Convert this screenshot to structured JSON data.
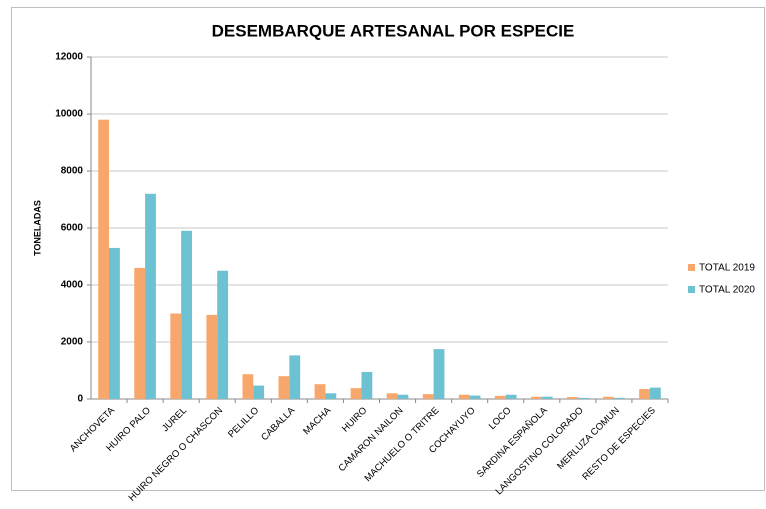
{
  "chart_data": {
    "type": "bar",
    "title": "DESEMBARQUE ARTESANAL POR ESPECIE",
    "ylabel": "TONELADAS",
    "categories": [
      "ANCHOVETA",
      "HUIRO PALO",
      "JUREL",
      "HUIRO NEGRO O CHASCON",
      "PELILLO",
      "CABALLA",
      "MACHA",
      "HUIRO",
      "CAMARON NAILON",
      "MACHUELO O TRITRE",
      "COCHAYUYO",
      "LOCO",
      "SARDINA ESPAÑOLA",
      "LANGOSTINO COLORADO",
      "MERLUZA COMUN",
      "RESTO DE ESPECIES"
    ],
    "series": [
      {
        "name": "TOTAL 2019",
        "color": "#f8a76c",
        "values": [
          9800,
          4600,
          3000,
          2950,
          870,
          800,
          520,
          380,
          200,
          170,
          150,
          110,
          80,
          70,
          80,
          350
        ]
      },
      {
        "name": "TOTAL 2020",
        "color": "#6cc1d2",
        "values": [
          5300,
          7200,
          5900,
          4500,
          470,
          1530,
          200,
          950,
          150,
          1750,
          120,
          150,
          80,
          40,
          40,
          400
        ]
      }
    ],
    "ylim": [
      0,
      12000
    ],
    "yticks": [
      0,
      2000,
      4000,
      6000,
      8000,
      10000,
      12000
    ],
    "grid": true,
    "legend": "right"
  }
}
